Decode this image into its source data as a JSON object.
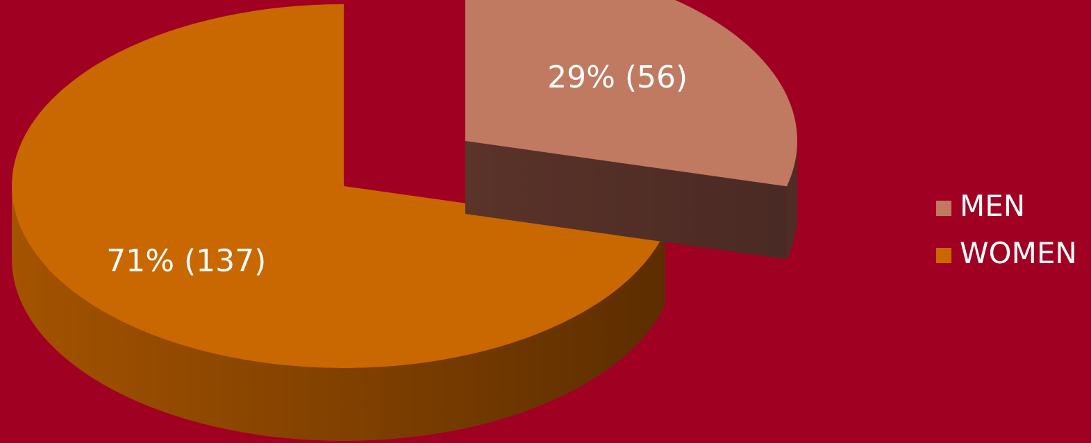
{
  "chart_data": {
    "type": "pie",
    "style": "3d-exploded",
    "background_color": "#A00022",
    "slices": [
      {
        "label": "MEN",
        "value": 56,
        "percent": 29,
        "data_label": "29% (56)",
        "color": "#C07A61",
        "side_color": "#53302A",
        "exploded": true
      },
      {
        "label": "WOMEN",
        "value": 137,
        "percent": 71,
        "data_label": "71% (137)",
        "color": "#C96800",
        "side_color": "#7A3B00",
        "exploded": false
      }
    ],
    "legend": {
      "position": "right",
      "items": [
        {
          "label": "MEN",
          "color": "#C07A61"
        },
        {
          "label": "WOMEN",
          "color": "#C96800"
        }
      ]
    },
    "label_color": "#FFFFFF"
  }
}
